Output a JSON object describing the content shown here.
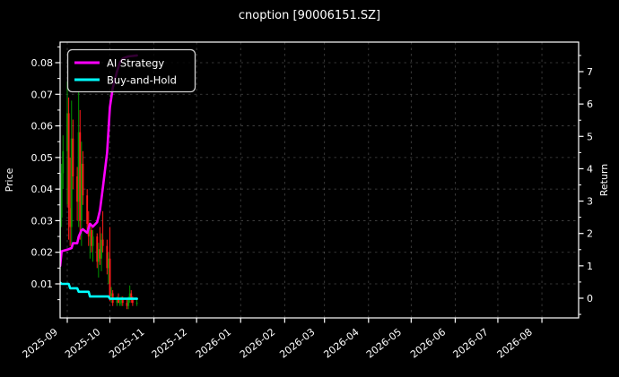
{
  "title": "cnoption [90006151.SZ]",
  "colors": {
    "background": "#000000",
    "text": "#ffffff",
    "spine": "#ffffff",
    "grid": "rgba(255,255,255,0.28)",
    "ai_strategy": "#ff00ff",
    "buy_and_hold": "#00ffff",
    "candle_up": "#009600",
    "candle_down": "#ff1a1a",
    "legend_border": "#cfcfcf",
    "legend_bg": "#000000"
  },
  "chart_data": {
    "type": "candlestick+line",
    "title": "cnoption [90006151.SZ]",
    "grid": true,
    "legend_position": "upper-left",
    "x_ticks": [
      "2025-09",
      "2025-10",
      "2025-11",
      "2025-12",
      "2026-01",
      "2026-02",
      "2026-03",
      "2026-04",
      "2026-05",
      "2026-06",
      "2026-07",
      "2026-08"
    ],
    "left_axis": {
      "label": "Price",
      "tick_labels": [
        "0.01",
        "0.02",
        "0.03",
        "0.04",
        "0.05",
        "0.06",
        "0.07",
        "0.08"
      ],
      "tick_values": [
        0.01,
        0.02,
        0.03,
        0.04,
        0.05,
        0.06,
        0.07,
        0.08
      ],
      "minor_tick_values": [
        0.005,
        0.015,
        0.025,
        0.035,
        0.045,
        0.055,
        0.065,
        0.075,
        0.085
      ],
      "range": [
        0.0,
        0.0865
      ]
    },
    "right_axis": {
      "label": "Return",
      "tick_labels": [
        "0",
        "1",
        "2",
        "3",
        "4",
        "5",
        "6",
        "7"
      ],
      "tick_values": [
        0,
        1,
        2,
        3,
        4,
        5,
        6,
        7
      ],
      "minor_tick_values": [
        -0.5,
        0.5,
        1.5,
        2.5,
        3.5,
        4.5,
        5.5,
        6.5,
        7.5
      ],
      "range": [
        -0.61,
        7.91
      ]
    },
    "legend": [
      {
        "label": "AI Strategy",
        "color": "#ff00ff"
      },
      {
        "label": "Buy-and-Hold",
        "color": "#00ffff"
      }
    ],
    "candles_format": [
      "date",
      "open",
      "high",
      "low",
      "close"
    ],
    "candles": [
      [
        "2025-08-27",
        0.02,
        0.034,
        0.019,
        0.031
      ],
      [
        "2025-08-28",
        0.031,
        0.048,
        0.028,
        0.045
      ],
      [
        "2025-08-29",
        0.045,
        0.057,
        0.04,
        0.052
      ],
      [
        "2025-09-01",
        0.052,
        0.074,
        0.035,
        0.064
      ],
      [
        "2025-09-02",
        0.064,
        0.069,
        0.024,
        0.034
      ],
      [
        "2025-09-03",
        0.034,
        0.05,
        0.022,
        0.028
      ],
      [
        "2025-09-04",
        0.028,
        0.068,
        0.021,
        0.056
      ],
      [
        "2025-09-05",
        0.056,
        0.062,
        0.04,
        0.044
      ],
      [
        "2025-09-08",
        0.044,
        0.047,
        0.03,
        0.036
      ],
      [
        "2025-09-09",
        0.036,
        0.071,
        0.028,
        0.058
      ],
      [
        "2025-09-10",
        0.058,
        0.065,
        0.024,
        0.03
      ],
      [
        "2025-09-11",
        0.03,
        0.055,
        0.022,
        0.048
      ],
      [
        "2025-09-12",
        0.048,
        0.052,
        0.035,
        0.038
      ],
      [
        "2025-09-15",
        0.038,
        0.04,
        0.026,
        0.029
      ],
      [
        "2025-09-16",
        0.029,
        0.033,
        0.022,
        0.025
      ],
      [
        "2025-09-17",
        0.025,
        0.029,
        0.018,
        0.027
      ],
      [
        "2025-09-18",
        0.027,
        0.028,
        0.02,
        0.022
      ],
      [
        "2025-09-19",
        0.022,
        0.027,
        0.017,
        0.025
      ],
      [
        "2025-09-22",
        0.025,
        0.026,
        0.015,
        0.017
      ],
      [
        "2025-09-23",
        0.017,
        0.023,
        0.012,
        0.021
      ],
      [
        "2025-09-24",
        0.021,
        0.028,
        0.016,
        0.018
      ],
      [
        "2025-09-25",
        0.018,
        0.026,
        0.014,
        0.024
      ],
      [
        "2025-09-26",
        0.024,
        0.033,
        0.02,
        0.022
      ],
      [
        "2025-09-29",
        0.022,
        0.024,
        0.013,
        0.015
      ],
      [
        "2025-09-30",
        0.015,
        0.02,
        0.01,
        0.018
      ],
      [
        "2025-10-01",
        0.018,
        0.028,
        0.0045,
        0.006
      ],
      [
        "2025-10-02",
        0.006,
        0.009,
        0.004,
        0.007
      ],
      [
        "2025-10-03",
        0.007,
        0.008,
        0.003,
        0.004
      ],
      [
        "2025-10-06",
        0.004,
        0.006,
        0.003,
        0.005
      ],
      [
        "2025-10-07",
        0.005,
        0.007,
        0.004,
        0.004
      ],
      [
        "2025-10-08",
        0.004,
        0.005,
        0.003,
        0.004
      ],
      [
        "2025-10-09",
        0.004,
        0.006,
        0.003,
        0.005
      ],
      [
        "2025-10-10",
        0.005,
        0.006,
        0.003,
        0.004
      ],
      [
        "2025-10-13",
        0.004,
        0.005,
        0.002,
        0.003
      ],
      [
        "2025-10-14",
        0.003,
        0.006,
        0.002,
        0.005
      ],
      [
        "2025-10-15",
        0.005,
        0.0095,
        0.004,
        0.007
      ],
      [
        "2025-10-16",
        0.007,
        0.008,
        0.004,
        0.005
      ],
      [
        "2025-10-17",
        0.005,
        0.006,
        0.003,
        0.004
      ],
      [
        "2025-10-20",
        0.004,
        0.005,
        0.003,
        0.004
      ]
    ],
    "series": [
      {
        "name": "AI Strategy",
        "axis": "return",
        "color": "#ff00ff",
        "points": [
          [
            "2025-08-27",
            1.0
          ],
          [
            "2025-08-28",
            1.45
          ],
          [
            "2025-09-01",
            1.5
          ],
          [
            "2025-09-04",
            1.55
          ],
          [
            "2025-09-05",
            1.7
          ],
          [
            "2025-09-08",
            1.7
          ],
          [
            "2025-09-09",
            1.9
          ],
          [
            "2025-09-11",
            2.1
          ],
          [
            "2025-09-12",
            2.13
          ],
          [
            "2025-09-15",
            2.02
          ],
          [
            "2025-09-17",
            2.3
          ],
          [
            "2025-09-19",
            2.21
          ],
          [
            "2025-09-22",
            2.35
          ],
          [
            "2025-09-24",
            2.71
          ],
          [
            "2025-09-26",
            3.4
          ],
          [
            "2025-09-29",
            4.5
          ],
          [
            "2025-10-01",
            5.9
          ],
          [
            "2025-10-03",
            6.5
          ],
          [
            "2025-10-06",
            7.0
          ],
          [
            "2025-10-08",
            7.28
          ],
          [
            "2025-10-10",
            7.41
          ],
          [
            "2025-10-14",
            7.47
          ],
          [
            "2025-10-20",
            7.5
          ]
        ]
      },
      {
        "name": "Buy-and-Hold",
        "axis": "price",
        "color": "#00ffff",
        "points": [
          [
            "2025-08-27",
            0.0104
          ],
          [
            "2025-08-28",
            0.01
          ],
          [
            "2025-09-02",
            0.01
          ],
          [
            "2025-09-03",
            0.0086
          ],
          [
            "2025-09-08",
            0.0086
          ],
          [
            "2025-09-09",
            0.0075
          ],
          [
            "2025-09-16",
            0.0075
          ],
          [
            "2025-09-17",
            0.006
          ],
          [
            "2025-09-30",
            0.006
          ],
          [
            "2025-10-01",
            0.0053
          ],
          [
            "2025-10-20",
            0.0053
          ]
        ]
      }
    ]
  }
}
